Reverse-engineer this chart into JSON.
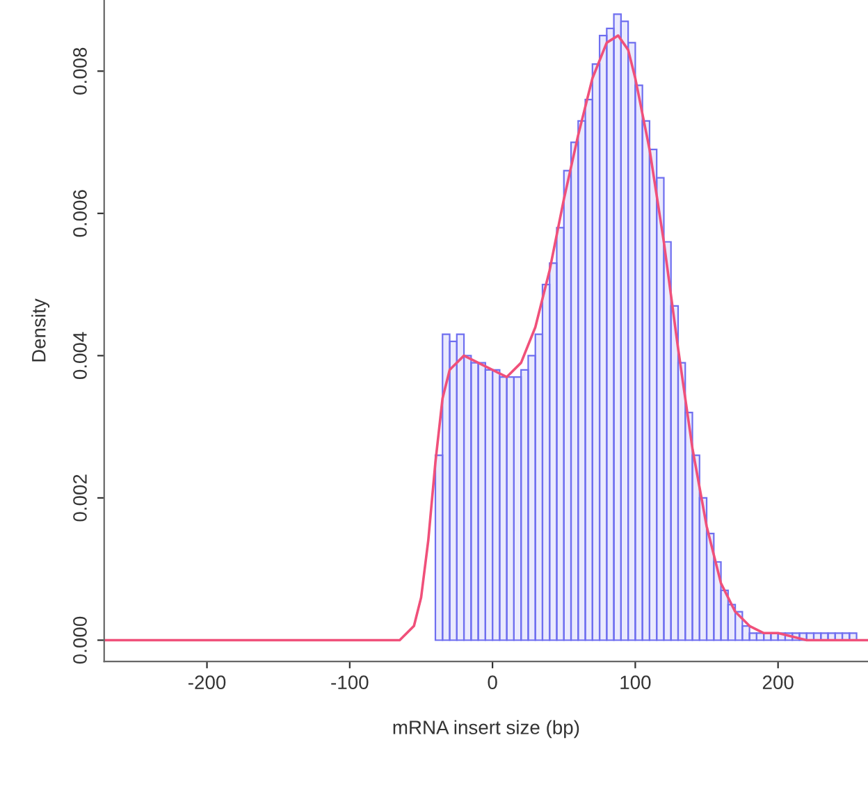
{
  "chart_data": {
    "type": "histogram",
    "xlabel": "mRNA insert size (bp)",
    "ylabel": "Density",
    "bins": [
      -40,
      -35,
      -30,
      -25,
      -20,
      -15,
      -10,
      -5,
      0,
      5,
      10,
      15,
      20,
      25,
      30,
      35,
      40,
      45,
      50,
      55,
      60,
      65,
      70,
      75,
      80,
      85,
      90,
      95,
      100,
      105,
      110,
      115,
      120,
      125,
      130,
      135,
      140,
      145,
      150,
      155,
      160,
      165,
      170,
      175,
      180,
      185,
      190,
      195,
      200,
      205,
      210,
      215,
      220,
      225,
      230,
      235,
      240,
      245,
      250,
      255
    ],
    "values": [
      0.0026,
      0.0043,
      0.0042,
      0.0043,
      0.004,
      0.0039,
      0.0039,
      0.0038,
      0.0038,
      0.0037,
      0.0037,
      0.0037,
      0.0038,
      0.004,
      0.0043,
      0.005,
      0.0053,
      0.0058,
      0.0066,
      0.007,
      0.0073,
      0.0076,
      0.0081,
      0.0085,
      0.0086,
      0.0088,
      0.0087,
      0.0084,
      0.0078,
      0.0073,
      0.0069,
      0.0065,
      0.0056,
      0.0047,
      0.0039,
      0.0032,
      0.0026,
      0.002,
      0.0015,
      0.0011,
      0.0007,
      0.0005,
      0.0004,
      0.0002,
      0.0001,
      0.0001,
      0.0001,
      0.0001,
      0.0001,
      0.0001,
      0.0001,
      0.0001,
      0.0001,
      0.0001,
      0.0001,
      0.0001,
      0.0001,
      0.0001,
      0.0001
    ],
    "color": "#6f6ff0",
    "series": [
      {
        "type": "line",
        "color": "#f0507a",
        "x": [
          -272,
          -150,
          -120,
          -90,
          -65,
          -55,
          -50,
          -45,
          -40,
          -35,
          -30,
          -20,
          -10,
          0,
          10,
          20,
          30,
          40,
          50,
          60,
          70,
          80,
          88,
          95,
          100,
          110,
          120,
          130,
          140,
          150,
          160,
          170,
          180,
          190,
          200,
          220,
          250,
          263
        ],
        "values": [
          0,
          0,
          0,
          0,
          0,
          0.0002,
          0.0006,
          0.0014,
          0.0025,
          0.0034,
          0.0038,
          0.004,
          0.0039,
          0.0038,
          0.0037,
          0.0039,
          0.0044,
          0.0052,
          0.0062,
          0.0071,
          0.0079,
          0.0084,
          0.0085,
          0.0083,
          0.0079,
          0.0069,
          0.0056,
          0.0041,
          0.0027,
          0.0016,
          0.0008,
          0.0004,
          0.0002,
          0.0001,
          0.0001,
          0,
          0,
          0
        ]
      }
    ],
    "xlim": [
      -272,
      263
    ],
    "ylim": [
      -0.0003,
      0.009
    ],
    "xticks": [
      -200,
      -100,
      0,
      100,
      200
    ],
    "yticks": [
      {
        "value": 0,
        "label": "0.000"
      },
      {
        "value": 0.002,
        "label": "0.002"
      },
      {
        "value": 0.004,
        "label": "0.004"
      },
      {
        "value": 0.006,
        "label": "0.006"
      },
      {
        "value": 0.008,
        "label": "0.008"
      }
    ],
    "grid": false,
    "legend": false
  }
}
